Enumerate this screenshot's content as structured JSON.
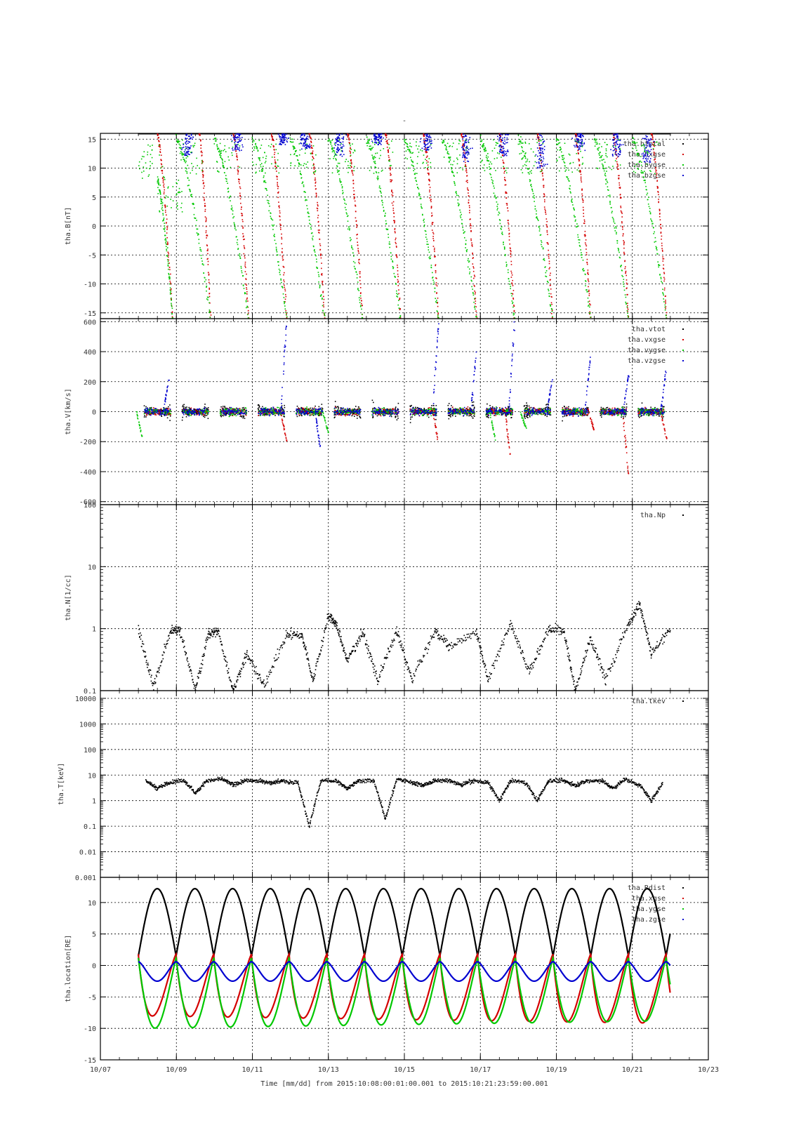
{
  "title": "-",
  "xaxis": {
    "title": "Time [mm/dd]  from 2015:10:08:00:01:00.001  to  2015:10:21:23:59:00.001",
    "range": [
      "10/07",
      "10/23"
    ],
    "tick_labels": [
      "10/07",
      "10/09",
      "10/11",
      "10/13",
      "10/15",
      "10/17",
      "10/19",
      "10/21",
      "10/23"
    ]
  },
  "colors": {
    "red": "#d40000",
    "green": "#00c800",
    "blue": "#0000d0",
    "black": "#000000"
  },
  "chart_data": [
    {
      "type": "scatter",
      "ylabel": "tha.B[nT]",
      "ylim": [
        -16,
        16
      ],
      "scale": "linear",
      "yticks": [
        15,
        10,
        5,
        0,
        -5,
        -10,
        -15
      ],
      "ytick_labels": [
        "15",
        "10",
        "5",
        "0",
        "-5",
        "-10",
        "-15"
      ],
      "legend": [
        "tha.btotal",
        "tha.bxgse",
        "tha.bygse",
        "tha.bzgse"
      ],
      "legend_position": "top-right",
      "series": [
        {
          "name": "tha.btotal",
          "color": "black",
          "pattern": "saturated",
          "points": [
            [
              8.0,
              15.9
            ],
            [
              14.0,
              15.9
            ],
            [
              21.0,
              15.9
            ]
          ]
        },
        {
          "name": "tha.bxgse",
          "color": "red",
          "pattern": "decay",
          "points": [
            [
              8.5,
              16
            ],
            [
              8.9,
              -16
            ],
            [
              9.6,
              16
            ],
            [
              9.9,
              -16
            ],
            [
              10.5,
              16
            ],
            [
              10.9,
              -16
            ],
            [
              11.5,
              16
            ],
            [
              11.9,
              -16
            ],
            [
              12.5,
              16
            ],
            [
              12.9,
              -16
            ],
            [
              13.5,
              16
            ],
            [
              13.9,
              -16
            ],
            [
              14.5,
              16
            ],
            [
              14.9,
              -16
            ],
            [
              15.5,
              16
            ],
            [
              15.9,
              -16
            ],
            [
              16.5,
              16
            ],
            [
              16.9,
              -16
            ],
            [
              17.5,
              16
            ],
            [
              17.9,
              -16
            ],
            [
              18.5,
              16
            ],
            [
              18.9,
              -16
            ],
            [
              19.5,
              16
            ],
            [
              19.9,
              -16
            ],
            [
              20.5,
              16
            ],
            [
              20.9,
              -16
            ],
            [
              21.5,
              16
            ],
            [
              21.9,
              -16
            ]
          ]
        },
        {
          "name": "tha.bygse",
          "color": "green",
          "pattern": "decay",
          "points": [
            [
              8.0,
              14
            ],
            [
              8.5,
              8
            ],
            [
              8.9,
              -16
            ],
            [
              9.0,
              15
            ],
            [
              9.9,
              -16
            ],
            [
              10.0,
              15
            ],
            [
              10.9,
              -16
            ],
            [
              11.0,
              15
            ],
            [
              11.9,
              -16
            ],
            [
              12.0,
              15
            ],
            [
              12.9,
              -16
            ],
            [
              13.0,
              15
            ],
            [
              13.9,
              -16
            ],
            [
              14.0,
              15
            ],
            [
              14.9,
              -16
            ],
            [
              15.0,
              15
            ],
            [
              15.9,
              -16
            ],
            [
              16.0,
              15
            ],
            [
              16.9,
              -16
            ],
            [
              17.0,
              15
            ],
            [
              17.9,
              -16
            ],
            [
              18.0,
              15
            ],
            [
              18.9,
              -16
            ],
            [
              19.0,
              15
            ],
            [
              19.9,
              -16
            ],
            [
              20.0,
              15
            ],
            [
              20.9,
              -16
            ],
            [
              21.0,
              15
            ],
            [
              21.9,
              -16
            ]
          ]
        },
        {
          "name": "tha.bzgse",
          "color": "blue",
          "pattern": "top-clusters",
          "points": [
            [
              9.3,
              12
            ],
            [
              10.6,
              13
            ],
            [
              11.8,
              14
            ],
            [
              12.4,
              13
            ],
            [
              13.3,
              12
            ],
            [
              14.3,
              14
            ],
            [
              15.6,
              13
            ],
            [
              16.6,
              11
            ],
            [
              17.6,
              12
            ],
            [
              18.6,
              10
            ],
            [
              19.6,
              13
            ],
            [
              20.6,
              12
            ],
            [
              21.4,
              11
            ]
          ]
        }
      ]
    },
    {
      "type": "scatter",
      "ylabel": "tha.V[km/s]",
      "ylim": [
        -620,
        620
      ],
      "scale": "linear",
      "yticks": [
        600,
        400,
        200,
        0,
        -200,
        -400,
        -600
      ],
      "ytick_labels": [
        "600",
        "400",
        "200",
        "0",
        "-200",
        "-400",
        "-600"
      ],
      "legend": [
        "tha.vtot",
        "tha.vxgse",
        "tha.vygse",
        "tha.vzgse"
      ],
      "legend_position": "top-right",
      "series": [
        {
          "name": "tha.vtot",
          "color": "black",
          "pattern": "bursts",
          "points": [
            [
              8.5,
              0
            ],
            [
              9.5,
              0
            ],
            [
              10.5,
              0
            ],
            [
              11.5,
              0
            ],
            [
              12.5,
              0
            ],
            [
              13.5,
              0
            ],
            [
              14.5,
              0
            ],
            [
              15.5,
              0
            ],
            [
              16.5,
              0
            ],
            [
              17.5,
              0
            ],
            [
              18.5,
              0
            ],
            [
              19.5,
              0
            ],
            [
              20.5,
              0
            ],
            [
              21.5,
              0
            ]
          ]
        },
        {
          "name": "tha.vxgse",
          "color": "red",
          "pattern": "bursts",
          "points": [
            [
              11.9,
              -200
            ],
            [
              15.9,
              -210
            ],
            [
              17.8,
              -330
            ],
            [
              20.0,
              -130
            ],
            [
              20.9,
              -420
            ],
            [
              21.9,
              -180
            ]
          ]
        },
        {
          "name": "tha.vygse",
          "color": "green",
          "pattern": "bursts",
          "points": [
            [
              8.1,
              -170
            ],
            [
              13.0,
              -140
            ],
            [
              17.4,
              -190
            ],
            [
              18.2,
              -110
            ]
          ]
        },
        {
          "name": "tha.vzgse",
          "color": "blue",
          "pattern": "bursts",
          "points": [
            [
              8.8,
              210
            ],
            [
              11.9,
              600
            ],
            [
              12.8,
              -270
            ],
            [
              15.9,
              600
            ],
            [
              16.9,
              410
            ],
            [
              17.9,
              600
            ],
            [
              18.9,
              230
            ],
            [
              19.9,
              370
            ],
            [
              20.9,
              240
            ],
            [
              21.9,
              300
            ]
          ]
        }
      ]
    },
    {
      "type": "scatter",
      "ylabel": "tha.N[1/cc]",
      "ylim": [
        0.1,
        100
      ],
      "scale": "log",
      "yticks": [
        100,
        10,
        1,
        0.1
      ],
      "ytick_labels": [
        "100",
        "10",
        "1",
        "0.1"
      ],
      "legend": [
        "tha.Np"
      ],
      "legend_position": "top-right",
      "series": [
        {
          "name": "tha.Np",
          "color": "black",
          "pattern": "v-segments",
          "points": [
            [
              8.0,
              1.0
            ],
            [
              8.4,
              0.12
            ],
            [
              8.85,
              0.9
            ],
            [
              9.1,
              0.95
            ],
            [
              9.5,
              0.1
            ],
            [
              9.85,
              0.85
            ],
            [
              10.1,
              0.9
            ],
            [
              10.5,
              0.1
            ],
            [
              10.85,
              0.4
            ],
            [
              11.3,
              0.12
            ],
            [
              11.9,
              0.8
            ],
            [
              12.3,
              0.8
            ],
            [
              12.6,
              0.15
            ],
            [
              13.0,
              1.6
            ],
            [
              13.2,
              1.2
            ],
            [
              13.5,
              0.3
            ],
            [
              13.9,
              0.9
            ],
            [
              14.3,
              0.15
            ],
            [
              14.8,
              0.9
            ],
            [
              15.2,
              0.15
            ],
            [
              15.8,
              0.9
            ],
            [
              16.2,
              0.5
            ],
            [
              16.9,
              0.9
            ],
            [
              17.2,
              0.15
            ],
            [
              17.8,
              1.2
            ],
            [
              18.3,
              0.2
            ],
            [
              18.8,
              1.0
            ],
            [
              19.2,
              0.9
            ],
            [
              19.5,
              0.1
            ],
            [
              19.9,
              0.7
            ],
            [
              20.3,
              0.15
            ],
            [
              20.9,
              1.2
            ],
            [
              21.2,
              2.5
            ],
            [
              21.5,
              0.4
            ],
            [
              22.0,
              1.0
            ]
          ]
        }
      ]
    },
    {
      "type": "scatter",
      "ylabel": "tha.T[keV]",
      "ylim": [
        0.001,
        20000
      ],
      "scale": "log",
      "yticks": [
        10000,
        1000,
        100,
        10,
        1,
        0.1,
        0.01,
        0.001
      ],
      "ytick_labels": [
        "10000",
        "1000",
        "100",
        "10",
        "1",
        "0.1",
        "0.01",
        "0.001"
      ],
      "legend": [
        "tha.tkev"
      ],
      "legend_position": "top-right",
      "series": [
        {
          "name": "tha.tkev",
          "color": "black",
          "pattern": "segments",
          "points": [
            [
              8.2,
              6
            ],
            [
              8.5,
              3
            ],
            [
              8.8,
              5
            ],
            [
              9.2,
              6
            ],
            [
              9.5,
              2
            ],
            [
              9.8,
              6
            ],
            [
              10.2,
              7
            ],
            [
              10.5,
              4
            ],
            [
              10.8,
              6
            ],
            [
              11.2,
              6
            ],
            [
              11.5,
              5
            ],
            [
              11.8,
              6
            ],
            [
              12.2,
              5
            ],
            [
              12.5,
              0.1
            ],
            [
              12.8,
              6
            ],
            [
              13.2,
              6
            ],
            [
              13.5,
              3
            ],
            [
              13.8,
              6
            ],
            [
              14.2,
              6
            ],
            [
              14.5,
              0.2
            ],
            [
              14.8,
              7
            ],
            [
              15.2,
              5
            ],
            [
              15.5,
              4
            ],
            [
              15.8,
              6
            ],
            [
              16.2,
              6
            ],
            [
              16.5,
              4
            ],
            [
              16.8,
              6
            ],
            [
              17.2,
              5
            ],
            [
              17.5,
              1
            ],
            [
              17.8,
              6
            ],
            [
              18.2,
              5
            ],
            [
              18.5,
              1
            ],
            [
              18.8,
              6
            ],
            [
              19.2,
              6
            ],
            [
              19.5,
              4
            ],
            [
              19.8,
              6
            ],
            [
              20.2,
              6
            ],
            [
              20.5,
              3
            ],
            [
              20.8,
              7
            ],
            [
              21.2,
              4
            ],
            [
              21.5,
              1
            ],
            [
              21.8,
              5
            ]
          ]
        }
      ]
    },
    {
      "type": "line",
      "ylabel": "tha.location[RE]",
      "ylim": [
        -15,
        14
      ],
      "scale": "linear",
      "yticks": [
        10,
        5,
        0,
        -5,
        -10,
        -15
      ],
      "ytick_labels": [
        "10",
        "5",
        "0",
        "-5",
        "-10",
        "-15"
      ],
      "legend": [
        "tha.Rdist",
        "tha.xgse",
        "tha.ygse",
        "tha.zgse"
      ],
      "legend_position": "top-right",
      "period_days": 0.992,
      "t_start": 8.0,
      "t_end": 22.0,
      "series": [
        {
          "name": "tha.Rdist",
          "color": "black",
          "apogee": 12.2,
          "perigee": 1.5
        },
        {
          "name": "tha.xgse",
          "color": "red",
          "min_first": -8.0,
          "min_last": -9.2,
          "max": 1.8
        },
        {
          "name": "tha.ygse",
          "color": "green",
          "min_first": -10.0,
          "min_last": -8.8,
          "max": 1.2
        },
        {
          "name": "tha.zgse",
          "color": "blue",
          "min": -2.5,
          "max": 0.6
        }
      ]
    }
  ]
}
